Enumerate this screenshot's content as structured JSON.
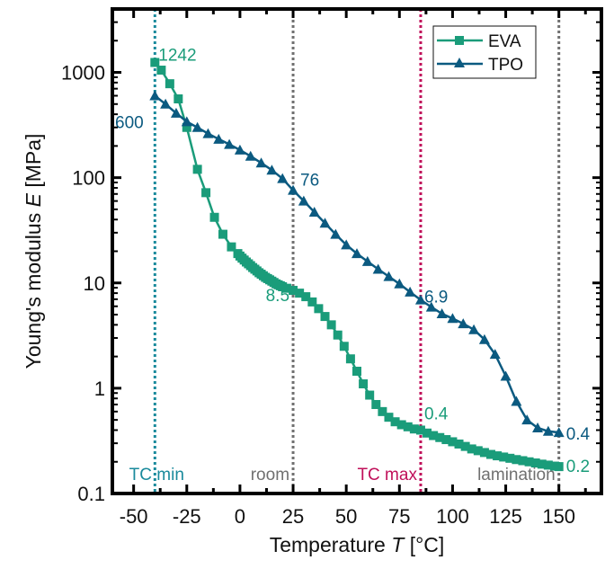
{
  "chart_data": {
    "type": "line",
    "title": "",
    "xlabel": "Temperature",
    "xlabel_italic": "T",
    "xlabel_unit": "[°C]",
    "ylabel": "Young's modulus",
    "ylabel_italic": "E",
    "ylabel_unit": "[MPa]",
    "xlim": [
      -60,
      170
    ],
    "ylim": [
      0.1,
      4000
    ],
    "yscale": "log",
    "grid": false,
    "legend_position": "top-right",
    "x_ticks": [
      -50,
      -25,
      0,
      25,
      50,
      75,
      100,
      125,
      150
    ],
    "x_tick_labels": [
      "-50",
      "-25",
      "0",
      "25",
      "50",
      "75",
      "100",
      "125",
      "150"
    ],
    "y_ticks": [
      0.1,
      1,
      10,
      100,
      1000
    ],
    "y_tick_labels": [
      "0.1",
      "1",
      "10",
      "100",
      "1000"
    ],
    "series": [
      {
        "name": "EVA",
        "color": "#1a9c7a",
        "marker": "square",
        "x": [
          -40,
          -37,
          -33,
          -29,
          -25,
          -20,
          -16,
          -12,
          -8,
          -4,
          -1,
          0,
          1,
          2,
          3,
          4,
          5,
          6,
          7,
          8,
          9,
          10,
          11,
          12,
          13,
          14,
          15,
          16,
          17,
          18,
          19,
          20,
          22,
          25,
          28,
          31,
          34,
          37,
          40,
          43,
          46,
          49,
          52,
          55,
          58,
          61,
          64,
          67,
          70,
          73,
          76,
          79,
          82,
          85,
          88,
          91,
          94,
          97,
          100,
          103,
          106,
          109,
          112,
          115,
          118,
          121,
          124,
          127,
          130,
          133,
          136,
          139,
          142,
          145,
          148,
          150
        ],
        "y": [
          1242,
          1050,
          780,
          560,
          300,
          120,
          72,
          42,
          29,
          22,
          19,
          18,
          17.2,
          16.5,
          15.8,
          15.2,
          14.6,
          14.0,
          13.5,
          13.0,
          12.5,
          12.1,
          11.7,
          11.3,
          11.0,
          10.7,
          10.4,
          10.1,
          9.8,
          9.6,
          9.4,
          9.2,
          8.9,
          8.5,
          8.0,
          7.4,
          6.6,
          5.7,
          4.8,
          4.0,
          3.2,
          2.5,
          1.9,
          1.45,
          1.1,
          0.86,
          0.7,
          0.6,
          0.53,
          0.48,
          0.45,
          0.43,
          0.41,
          0.4,
          0.375,
          0.355,
          0.34,
          0.325,
          0.31,
          0.295,
          0.28,
          0.265,
          0.255,
          0.245,
          0.235,
          0.228,
          0.222,
          0.216,
          0.21,
          0.205,
          0.2,
          0.195,
          0.19,
          0.186,
          0.182,
          0.18
        ]
      },
      {
        "name": "TPO",
        "color": "#0b5a80",
        "marker": "triangle",
        "x": [
          -40,
          -35,
          -30,
          -25,
          -20,
          -15,
          -10,
          -5,
          0,
          5,
          10,
          15,
          20,
          25,
          30,
          35,
          40,
          45,
          50,
          55,
          60,
          65,
          70,
          75,
          80,
          85,
          90,
          95,
          100,
          105,
          110,
          115,
          120,
          125,
          130,
          135,
          140,
          145,
          150
        ],
        "y": [
          600,
          500,
          410,
          340,
          300,
          262,
          232,
          207,
          183,
          160,
          138,
          118,
          98,
          76,
          60,
          47,
          37,
          29,
          23,
          19,
          16,
          13.5,
          11.5,
          9.8,
          8.2,
          6.9,
          5.9,
          5.1,
          4.6,
          4.1,
          3.6,
          2.9,
          2.1,
          1.3,
          0.75,
          0.5,
          0.42,
          0.39,
          0.38
        ]
      }
    ],
    "vertical_lines": [
      {
        "x": -40,
        "label": "TC min",
        "color": "#1a8a9c"
      },
      {
        "x": 25,
        "label": "room",
        "color": "#707070"
      },
      {
        "x": 85,
        "label": "TC max",
        "color": "#c0105a"
      },
      {
        "x": 150,
        "label": "lamination",
        "color": "#707070"
      }
    ],
    "annotations": [
      {
        "text": "1242",
        "series": "EVA",
        "x": -40,
        "y": 1242,
        "color": "#1a9c7a"
      },
      {
        "text": "600",
        "series": "TPO",
        "x": -40,
        "y": 600,
        "color": "#0b5a80"
      },
      {
        "text": "76",
        "series": "TPO",
        "x": 25,
        "y": 76,
        "color": "#0b5a80"
      },
      {
        "text": "8.5",
        "series": "EVA",
        "x": 25,
        "y": 8.5,
        "color": "#1a9c7a"
      },
      {
        "text": "6.9",
        "series": "TPO",
        "x": 85,
        "y": 6.9,
        "color": "#0b5a80"
      },
      {
        "text": "0.4",
        "series": "EVA",
        "x": 85,
        "y": 0.4,
        "color": "#1a9c7a"
      },
      {
        "text": "0.4",
        "series": "TPO",
        "x": 150,
        "y": 0.38,
        "color": "#0b5a80"
      },
      {
        "text": "0.2",
        "series": "EVA",
        "x": 150,
        "y": 0.18,
        "color": "#1a9c7a"
      }
    ]
  }
}
